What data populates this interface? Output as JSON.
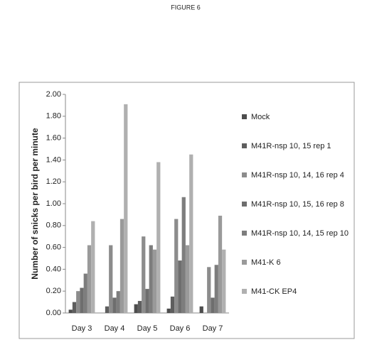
{
  "chart_data": {
    "type": "bar",
    "title": "FIGURE 6",
    "y_label": "Number of snicks per bird per minute",
    "categories": [
      "Day 3",
      "Day 4",
      "Day 5",
      "Day 6",
      "Day 7"
    ],
    "series": [
      {
        "name": "Mock",
        "color": "#4d4d4d",
        "values": [
          0.03,
          0,
          0.08,
          0.04,
          0.06
        ]
      },
      {
        "name": "M41R-nsp 10, 15 rep 1",
        "color": "#5e5e5e",
        "values": [
          0.1,
          0.06,
          0.11,
          0.15,
          0
        ]
      },
      {
        "name": "M41R-nsp 10, 14, 16 rep 4",
        "color": "#8c8c8c",
        "values": [
          0.2,
          0.62,
          0.7,
          0.86,
          0.42
        ]
      },
      {
        "name": "M41R-nsp 10, 15, 16 rep 8",
        "color": "#6e6e6e",
        "values": [
          0.23,
          0.14,
          0.22,
          0.48,
          0.14
        ]
      },
      {
        "name": "M41R-nsp 10, 14, 15 rep 10",
        "color": "#7d7d7d",
        "values": [
          0.36,
          0.2,
          0.62,
          1.06,
          0.44
        ]
      },
      {
        "name": "M41-K 6",
        "color": "#9a9a9a",
        "values": [
          0.62,
          0.86,
          0.58,
          0.62,
          0.89
        ]
      },
      {
        "name": "M41-CK EP4",
        "color": "#b0b0b0",
        "values": [
          0.84,
          1.91,
          1.38,
          1.45,
          0.58
        ]
      }
    ],
    "ylim": [
      0,
      2
    ],
    "yticks": [
      {
        "value": 0,
        "label": "0.00"
      },
      {
        "value": 0.2,
        "label": "0.20"
      },
      {
        "value": 0.4,
        "label": "0.40"
      },
      {
        "value": 0.6,
        "label": "0.60"
      },
      {
        "value": 0.8,
        "label": "0.80"
      },
      {
        "value": 1,
        "label": "1.00"
      },
      {
        "value": 1.2,
        "label": "1.20"
      },
      {
        "value": 1.4,
        "label": "1.40"
      },
      {
        "value": 1.6,
        "label": "1.60"
      },
      {
        "value": 1.8,
        "label": "1.80"
      },
      {
        "value": 2,
        "label": "2.00"
      }
    ]
  }
}
